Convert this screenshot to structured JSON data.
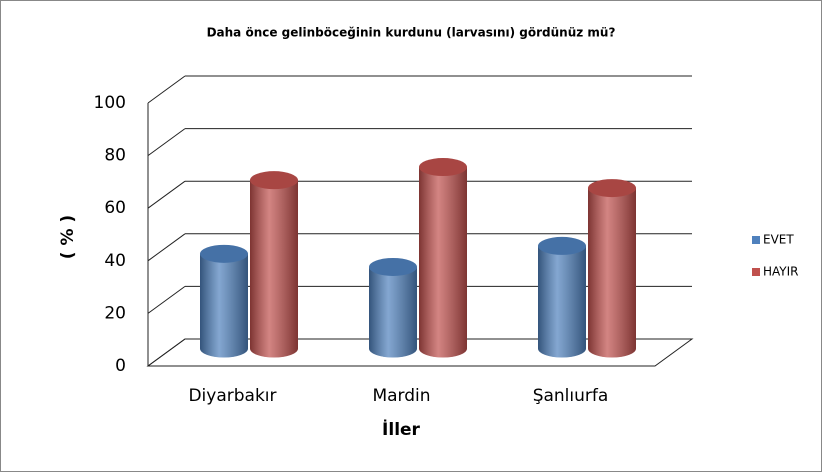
{
  "chart_data": {
    "type": "bar3d",
    "title": "Daha önce gelinböceğinin kurdunu (larvasını) gördünüz mü?",
    "x_label": "İller",
    "y_label": "( % )",
    "categories": [
      "Diyarbakır",
      "Mardin",
      "Şanlıurfa"
    ],
    "series": [
      {
        "name": "EVET",
        "color": "#4f81bd",
        "values": [
          36,
          31,
          39
        ]
      },
      {
        "name": "HAYIR",
        "color": "#c0504d",
        "values": [
          64,
          69,
          61
        ]
      }
    ],
    "ylim": [
      0,
      100
    ],
    "yticks": [
      0,
      20,
      40,
      60,
      80,
      100
    ],
    "grid": true,
    "legend": "right"
  }
}
